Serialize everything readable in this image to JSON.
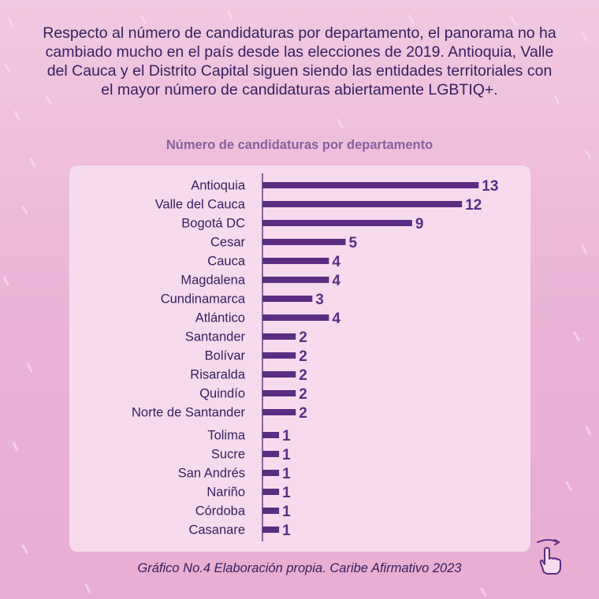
{
  "headline": "Respecto al número de candidaturas por departamento, el panorama no ha cambiado mucho en el país desde las elecciones de 2019. Antioquia, Valle del Cauca y el Distrito Capital siguen siendo las entidades territoriales con el mayor número de candidaturas abiertamente LGBTIQ+.",
  "footer": "Gráfico No.4 Elaboración propia. Caribe Afirmativo 2023",
  "colors": {
    "bar": "#5b2d82",
    "label_text": "#35205f",
    "panel": "#f6dbee"
  },
  "icons": {
    "swipe": "swipe-hand-icon"
  },
  "chart_data": {
    "type": "bar",
    "orientation": "horizontal",
    "title": "Número de candidaturas por departamento",
    "categories": [
      "Antioquia",
      "Valle del Cauca",
      "Bogotá DC",
      "Cesar",
      "Cauca",
      "Magdalena",
      "Cundinamarca",
      "Atlántico",
      "Santander",
      "Bolívar",
      "Risaralda",
      "Quindío",
      "Norte de Santander",
      "Tolima",
      "Sucre",
      "San Andrés",
      "Nariño",
      "Córdoba",
      "Casanare"
    ],
    "values": [
      13,
      12,
      9,
      5,
      4,
      4,
      3,
      4,
      2,
      2,
      2,
      2,
      2,
      1,
      1,
      1,
      1,
      1,
      1
    ],
    "data_labels": [
      "13",
      "12",
      "9",
      "5",
      "4",
      "4",
      "3",
      "4",
      "2",
      "2",
      "2",
      "2",
      "2",
      "1",
      "1",
      "1",
      "1",
      "1",
      "1"
    ],
    "xlabel": "",
    "ylabel": "",
    "grid": false,
    "legend": "none"
  }
}
